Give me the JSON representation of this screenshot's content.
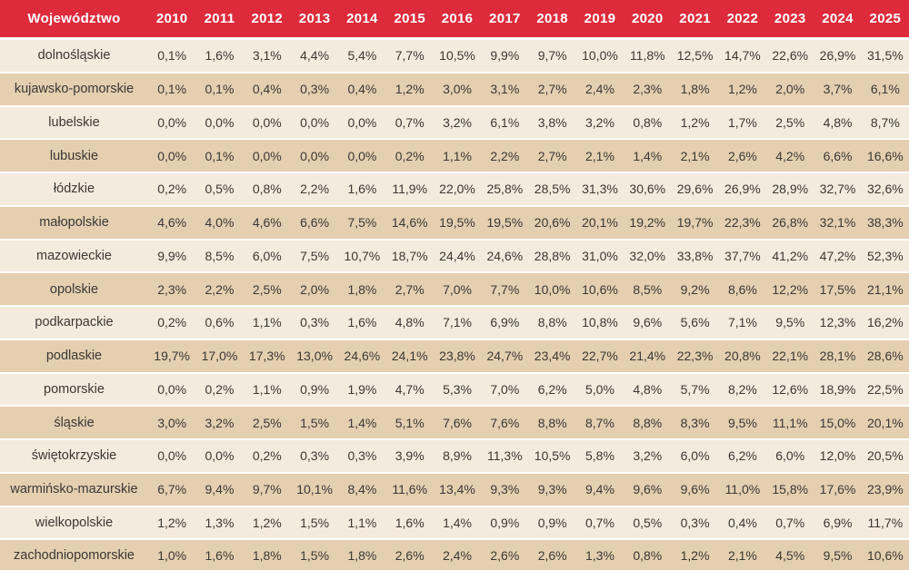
{
  "colors": {
    "header_background": "#dd2b3b",
    "header_text": "#ffffff",
    "row_light": "#f3ebdd",
    "row_dark": "#e4cfb0",
    "cell_text": "#3c3833",
    "row_divider": "#ffffff"
  },
  "chart_data": {
    "type": "table",
    "row_header_label": "Województwo",
    "unit": "%",
    "decimal_separator": ",",
    "categories": [
      "2010",
      "2011",
      "2012",
      "2013",
      "2014",
      "2015",
      "2016",
      "2017",
      "2018",
      "2019",
      "2020",
      "2021",
      "2022",
      "2023",
      "2024",
      "2025"
    ],
    "series": [
      {
        "name": "dolnośląskie",
        "values": [
          0.1,
          1.6,
          3.1,
          4.4,
          5.4,
          7.7,
          10.5,
          9.9,
          9.7,
          10.0,
          11.8,
          12.5,
          14.7,
          22.6,
          26.9,
          31.5
        ]
      },
      {
        "name": "kujawsko-pomorskie",
        "values": [
          0.1,
          0.1,
          0.4,
          0.3,
          0.4,
          1.2,
          3.0,
          3.1,
          2.7,
          2.4,
          2.3,
          1.8,
          1.2,
          2.0,
          3.7,
          6.1
        ]
      },
      {
        "name": "lubelskie",
        "values": [
          0.0,
          0.0,
          0.0,
          0.0,
          0.0,
          0.7,
          3.2,
          6.1,
          3.8,
          3.2,
          0.8,
          1.2,
          1.7,
          2.5,
          4.8,
          8.7
        ]
      },
      {
        "name": "lubuskie",
        "values": [
          0.0,
          0.1,
          0.0,
          0.0,
          0.0,
          0.2,
          1.1,
          2.2,
          2.7,
          2.1,
          1.4,
          2.1,
          2.6,
          4.2,
          6.6,
          16.6
        ]
      },
      {
        "name": "łódzkie",
        "values": [
          0.2,
          0.5,
          0.8,
          2.2,
          1.6,
          11.9,
          22.0,
          25.8,
          28.5,
          31.3,
          30.6,
          29.6,
          26.9,
          28.9,
          32.7,
          32.6
        ]
      },
      {
        "name": "małopolskie",
        "values": [
          4.6,
          4.0,
          4.6,
          6.6,
          7.5,
          14.6,
          19.5,
          19.5,
          20.6,
          20.1,
          19.2,
          19.7,
          22.3,
          26.8,
          32.1,
          38.3
        ]
      },
      {
        "name": "mazowieckie",
        "values": [
          9.9,
          8.5,
          6.0,
          7.5,
          10.7,
          18.7,
          24.4,
          24.6,
          28.8,
          31.0,
          32.0,
          33.8,
          37.7,
          41.2,
          47.2,
          52.3
        ]
      },
      {
        "name": "opolskie",
        "values": [
          2.3,
          2.2,
          2.5,
          2.0,
          1.8,
          2.7,
          7.0,
          7.7,
          10.0,
          10.6,
          8.5,
          9.2,
          8.6,
          12.2,
          17.5,
          21.1
        ]
      },
      {
        "name": "podkarpackie",
        "values": [
          0.2,
          0.6,
          1.1,
          0.3,
          1.6,
          4.8,
          7.1,
          6.9,
          8.8,
          10.8,
          9.6,
          5.6,
          7.1,
          9.5,
          12.3,
          16.2
        ]
      },
      {
        "name": "podlaskie",
        "values": [
          19.7,
          17.0,
          17.3,
          13.0,
          24.6,
          24.1,
          23.8,
          24.7,
          23.4,
          22.7,
          21.4,
          22.3,
          20.8,
          22.1,
          28.1,
          28.6
        ]
      },
      {
        "name": "pomorskie",
        "values": [
          0.0,
          0.2,
          1.1,
          0.9,
          1.9,
          4.7,
          5.3,
          7.0,
          6.2,
          5.0,
          4.8,
          5.7,
          8.2,
          12.6,
          18.9,
          22.5
        ]
      },
      {
        "name": "śląskie",
        "values": [
          3.0,
          3.2,
          2.5,
          1.5,
          1.4,
          5.1,
          7.6,
          7.6,
          8.8,
          8.7,
          8.8,
          8.3,
          9.5,
          11.1,
          15.0,
          20.1
        ]
      },
      {
        "name": "świętokrzyskie",
        "values": [
          0.0,
          0.0,
          0.2,
          0.3,
          0.3,
          3.9,
          8.9,
          11.3,
          10.5,
          5.8,
          3.2,
          6.0,
          6.2,
          6.0,
          12.0,
          20.5
        ]
      },
      {
        "name": "warmińsko-mazurskie",
        "values": [
          6.7,
          9.4,
          9.7,
          10.1,
          8.4,
          11.6,
          13.4,
          9.3,
          9.3,
          9.4,
          9.6,
          9.6,
          11.0,
          15.8,
          17.6,
          23.9
        ]
      },
      {
        "name": "wielkopolskie",
        "values": [
          1.2,
          1.3,
          1.2,
          1.5,
          1.1,
          1.6,
          1.4,
          0.9,
          0.9,
          0.7,
          0.5,
          0.3,
          0.4,
          0.7,
          6.9,
          11.7
        ]
      },
      {
        "name": "zachodniopomorskie",
        "values": [
          1.0,
          1.6,
          1.8,
          1.5,
          1.8,
          2.6,
          2.4,
          2.6,
          2.6,
          1.3,
          0.8,
          1.2,
          2.1,
          4.5,
          9.5,
          10.6
        ]
      }
    ]
  }
}
